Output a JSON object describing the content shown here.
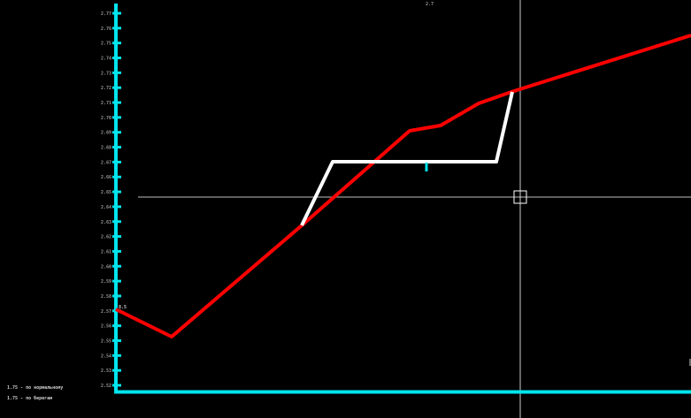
{
  "colors": {
    "background": "#000000",
    "axis": "#00e5ee",
    "profile": "#ff0000",
    "design_line": "#ffffff",
    "crosshair": "#ffffff"
  },
  "top_label": "2.7",
  "start_label": "8.5",
  "legend": [
    {
      "text": "1.75 - по нормальному"
    },
    {
      "text": "1.75 - по берегам"
    }
  ],
  "axis_ticks": [
    {
      "label": "2.77"
    },
    {
      "label": "2.76"
    },
    {
      "label": "2.75"
    },
    {
      "label": "2.74"
    },
    {
      "label": "2.73"
    },
    {
      "label": "2.72"
    },
    {
      "label": "2.71"
    },
    {
      "label": "2.70"
    },
    {
      "label": "2.69"
    },
    {
      "label": "2.68"
    },
    {
      "label": "2.67"
    },
    {
      "label": "2.66"
    },
    {
      "label": "2.65"
    },
    {
      "label": "2.64"
    },
    {
      "label": "2.63"
    },
    {
      "label": "2.62"
    },
    {
      "label": "2.61"
    },
    {
      "label": "2.60"
    },
    {
      "label": "2.59"
    },
    {
      "label": "2.58"
    },
    {
      "label": "2.57"
    },
    {
      "label": "2.56"
    },
    {
      "label": "2.55"
    },
    {
      "label": "2.54"
    },
    {
      "label": "2.53"
    },
    {
      "label": "2.52"
    }
  ],
  "cursor_icon": "crosshair-pickbox-icon"
}
